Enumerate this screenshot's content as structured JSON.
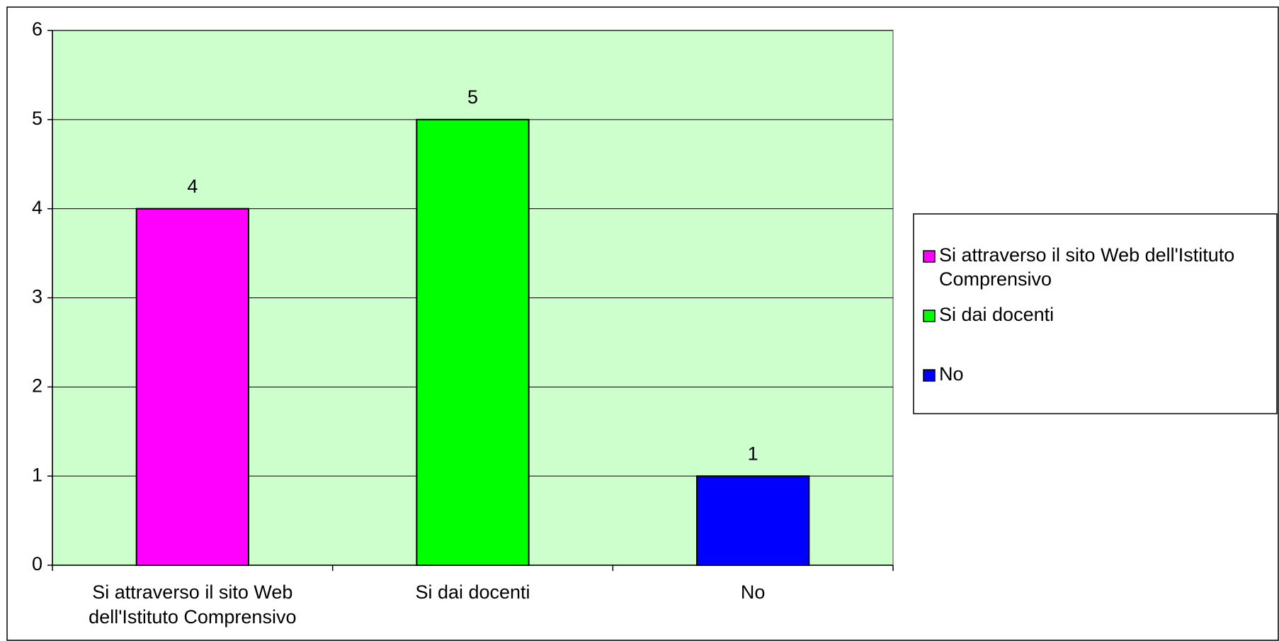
{
  "chart_data": {
    "type": "bar",
    "categories": [
      "Si attraverso il sito Web dell'Istituto Comprensivo",
      "Si dai docenti",
      "No"
    ],
    "values": [
      4,
      5,
      1
    ],
    "colors": [
      "#ff00ff",
      "#00ff00",
      "#0000ff"
    ],
    "ylim": [
      0,
      6
    ],
    "yticks": [
      0,
      1,
      2,
      3,
      4,
      5,
      6
    ],
    "grid": true,
    "legend": "right"
  }
}
